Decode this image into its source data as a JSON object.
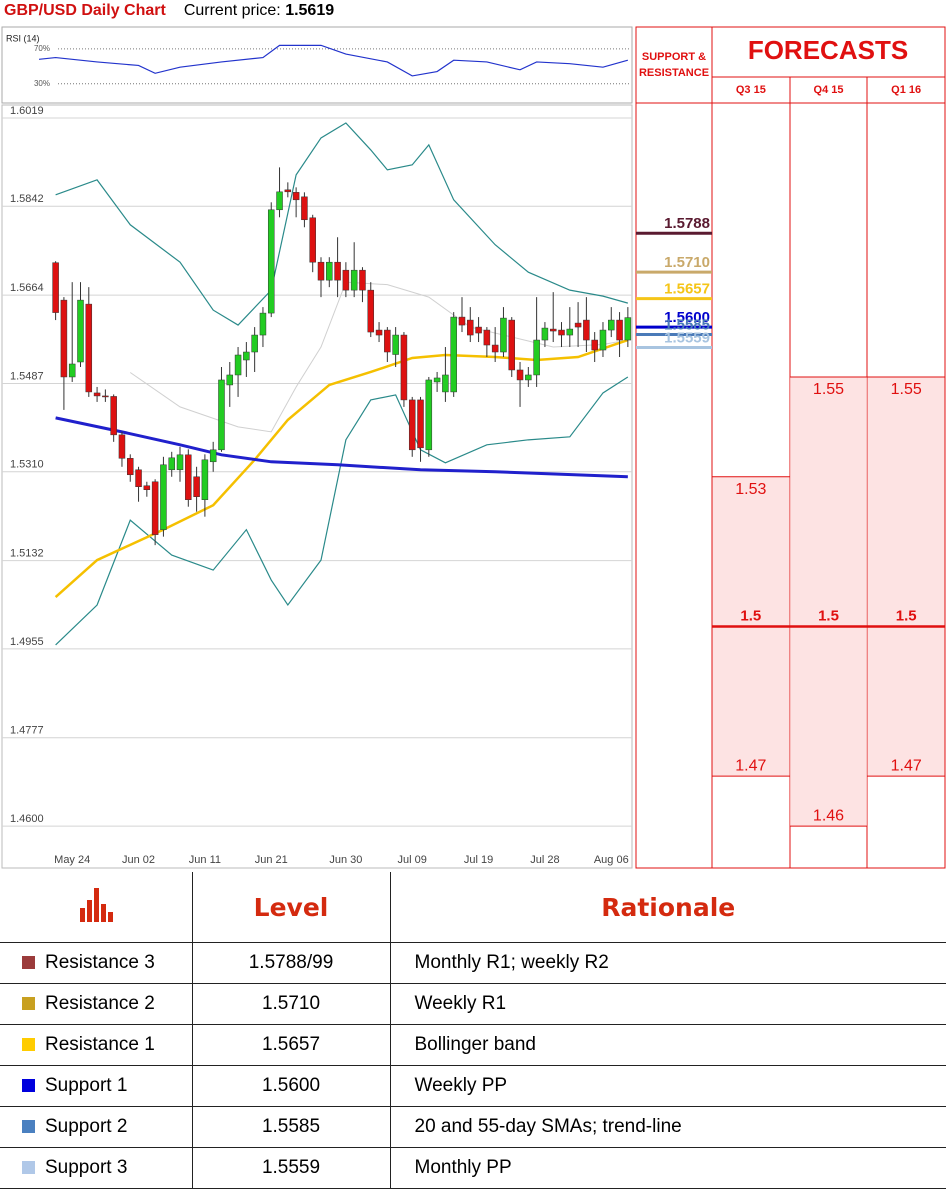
{
  "header": {
    "title": "GBP/USD Daily Chart",
    "price_label": "Current price:",
    "price": 1.5619
  },
  "chart_data": [
    {
      "type": "candlestick",
      "categories": [
        null,
        null,
        "May 24",
        null,
        null,
        null,
        null,
        null,
        null,
        null,
        "Jun 02",
        null,
        null,
        null,
        null,
        null,
        null,
        null,
        "Jun 11",
        null,
        null,
        null,
        null,
        null,
        null,
        null,
        "Jun 21",
        null,
        null,
        null,
        null,
        null,
        null,
        null,
        null,
        "Jun 30",
        null,
        null,
        null,
        null,
        null,
        null,
        null,
        "Jul 09",
        null,
        null,
        null,
        null,
        null,
        null,
        null,
        "Jul 19",
        null,
        null,
        null,
        null,
        null,
        null,
        null,
        "Jul 28",
        null,
        null,
        null,
        null,
        null,
        null,
        null,
        "Aug 06",
        null,
        null
      ],
      "open": [
        1.5729,
        1.5654,
        1.55,
        1.553,
        1.5646,
        1.5468,
        1.5462,
        1.5461,
        1.5384,
        1.5337,
        1.5314,
        1.5282,
        1.529,
        1.5194,
        1.5314,
        1.5314,
        1.5344,
        1.53,
        1.5254,
        1.533,
        1.5354,
        1.5484,
        1.5504,
        1.5534,
        1.555,
        1.5584,
        1.5628,
        1.5835,
        1.5875,
        1.587,
        1.5861,
        1.5819,
        1.573,
        1.5694,
        1.573,
        1.5714,
        1.5674,
        1.5714,
        1.5674,
        1.5594,
        1.5594,
        1.5545,
        1.5584,
        1.5454,
        1.5454,
        1.5354,
        1.549,
        1.547,
        1.547,
        1.562,
        1.5614,
        1.56,
        1.5594,
        1.5564,
        1.555,
        1.5614,
        1.5514,
        1.5494,
        1.5504,
        1.5574,
        1.5596,
        1.5594,
        1.5584,
        1.5608,
        1.5614,
        1.5574,
        1.5554,
        1.5594,
        1.5614,
        1.5574
      ],
      "high": [
        1.5732,
        1.566,
        1.569,
        1.569,
        1.568,
        1.548,
        1.5475,
        1.5465,
        1.539,
        1.5345,
        1.532,
        1.529,
        1.5295,
        1.534,
        1.535,
        1.536,
        1.5355,
        1.532,
        1.5345,
        1.537,
        1.552,
        1.553,
        1.556,
        1.557,
        1.56,
        1.564,
        1.585,
        1.592,
        1.589,
        1.588,
        1.587,
        1.5825,
        1.574,
        1.574,
        1.578,
        1.573,
        1.577,
        1.572,
        1.569,
        1.561,
        1.56,
        1.56,
        1.559,
        1.546,
        1.546,
        1.55,
        1.551,
        1.556,
        1.563,
        1.566,
        1.564,
        1.562,
        1.56,
        1.56,
        1.564,
        1.562,
        1.553,
        1.552,
        1.566,
        1.561,
        1.567,
        1.561,
        1.564,
        1.565,
        1.566,
        1.559,
        1.561,
        1.564,
        1.563,
        1.564
      ],
      "low": [
        1.5614,
        1.5434,
        1.549,
        1.552,
        1.546,
        1.545,
        1.545,
        1.537,
        1.532,
        1.529,
        1.525,
        1.526,
        1.5163,
        1.518,
        1.53,
        1.529,
        1.524,
        1.523,
        1.522,
        1.531,
        1.535,
        1.544,
        1.546,
        1.55,
        1.551,
        1.556,
        1.562,
        1.582,
        1.586,
        1.582,
        1.58,
        1.571,
        1.566,
        1.568,
        1.566,
        1.566,
        1.566,
        1.565,
        1.558,
        1.557,
        1.553,
        1.552,
        1.544,
        1.534,
        1.533,
        1.534,
        1.547,
        1.545,
        1.546,
        1.559,
        1.557,
        1.557,
        1.554,
        1.553,
        1.554,
        1.55,
        1.544,
        1.548,
        1.548,
        1.556,
        1.557,
        1.556,
        1.556,
        1.556,
        1.555,
        1.553,
        1.554,
        1.558,
        1.554,
        1.556
      ],
      "close": [
        1.5629,
        1.55,
        1.5526,
        1.5654,
        1.547,
        1.5462,
        1.546,
        1.5384,
        1.5337,
        1.5304,
        1.528,
        1.5274,
        1.5184,
        1.5324,
        1.5338,
        1.5344,
        1.5254,
        1.526,
        1.5334,
        1.5354,
        1.5494,
        1.5504,
        1.5544,
        1.555,
        1.5584,
        1.5628,
        1.5835,
        1.5871,
        1.5871,
        1.5855,
        1.5815,
        1.573,
        1.5694,
        1.573,
        1.5694,
        1.5674,
        1.5714,
        1.5674,
        1.559,
        1.5584,
        1.555,
        1.5584,
        1.5454,
        1.5354,
        1.5358,
        1.5494,
        1.5498,
        1.5504,
        1.562,
        1.5604,
        1.5584,
        1.5588,
        1.5564,
        1.555,
        1.5618,
        1.5514,
        1.5494,
        1.5504,
        1.5574,
        1.5598,
        1.5592,
        1.5584,
        1.5596,
        1.56,
        1.5574,
        1.5554,
        1.5594,
        1.5614,
        1.5574,
        1.5619
      ],
      "up_color": "#22cc22",
      "down_color": "#dd1111",
      "ylim": [
        1.4516,
        1.6045
      ],
      "yticks": [
        1.6019,
        1.5842,
        1.5664,
        1.5487,
        {
          "value": 1.531,
          "label": "1.5310"
        },
        1.5132,
        1.4955,
        1.4777,
        {
          "value": 1.46,
          "label": "1.4600"
        }
      ],
      "grid": true,
      "overlays": [
        {
          "color": "#2a8a8a",
          "x": [
            0,
            5,
            9,
            15,
            19,
            22,
            26,
            29,
            32,
            35,
            38,
            40,
            43,
            45,
            48,
            53,
            57,
            62,
            66,
            69
          ],
          "values": [
            1.5865,
            1.5895,
            1.5805,
            1.573,
            1.5634,
            1.5604,
            1.5674,
            1.5905,
            1.5979,
            1.6009,
            1.5955,
            1.5915,
            1.5925,
            1.5965,
            1.5855,
            1.5765,
            1.571,
            1.5674,
            1.5662,
            1.5648
          ]
        },
        {
          "color": "#2a8a8a",
          "x": [
            0,
            5,
            9,
            14,
            19,
            23,
            26,
            28,
            32,
            35,
            38,
            41,
            44,
            47,
            52,
            57,
            62,
            66,
            69
          ],
          "values": [
            1.4963,
            1.5043,
            1.5213,
            1.5143,
            1.5113,
            1.5194,
            1.5093,
            1.5043,
            1.5133,
            1.5374,
            1.5454,
            1.5464,
            1.5354,
            1.5328,
            1.5364,
            1.5374,
            1.538,
            1.5468,
            1.55
          ]
        },
        {
          "color": "#d0d0d0",
          "x": [
            9,
            15,
            22,
            26,
            29,
            32,
            35,
            40,
            45,
            50,
            55,
            60,
            66,
            69
          ],
          "values": [
            1.5509,
            1.544,
            1.54,
            1.539,
            1.548,
            1.556,
            1.569,
            1.5685,
            1.566,
            1.56,
            1.558,
            1.556,
            1.5565,
            1.5574
          ]
        },
        {
          "color": "#f5c000",
          "x": [
            0,
            5,
            13,
            19,
            24,
            28,
            33,
            38,
            43,
            47,
            53,
            58,
            63,
            69
          ],
          "values": [
            1.5059,
            1.5133,
            1.5194,
            1.5243,
            1.5334,
            1.5414,
            1.5484,
            1.551,
            1.5538,
            1.5544,
            1.554,
            1.5534,
            1.554,
            1.5574
          ]
        },
        {
          "color": "#2020cc",
          "x": [
            0,
            8,
            15,
            20,
            26,
            34,
            44,
            53,
            69
          ],
          "values": [
            1.5418,
            1.539,
            1.5364,
            1.5344,
            1.533,
            1.5324,
            1.5314,
            1.531,
            1.53
          ]
        }
      ],
      "levels_title": "SUPPORT & RESISTANCE",
      "levels": {
        "values": [
          1.5788,
          1.571,
          1.5657,
          1.56,
          1.5585,
          1.5559
        ],
        "value_labels": [
          "1.5788",
          "1.5710",
          "1.5657",
          "1.5600",
          "1.5585",
          "1.5559"
        ],
        "colors": [
          "#5a1a30",
          "#c9a96a",
          "#f5c518",
          "#0000cc",
          "#4a7ab8",
          "#a8c4e0"
        ]
      }
    },
    {
      "type": "line",
      "title": "RSI (14)",
      "color": "#2233cc",
      "x": [
        -2,
        0,
        5,
        10,
        12,
        15,
        20,
        25,
        27,
        32,
        35,
        40,
        43,
        46,
        48,
        52,
        56,
        58,
        62,
        66,
        69
      ],
      "values": [
        58,
        60,
        55,
        51,
        42,
        49,
        55,
        60,
        74,
        74,
        64,
        55,
        39,
        44,
        57,
        55,
        46,
        55,
        53,
        49,
        57
      ],
      "xlim": [
        -5.5,
        69.5
      ],
      "ylim": [
        8,
        95
      ],
      "yticks": [
        {
          "value": 70,
          "label": "70%"
        },
        {
          "value": 30,
          "label": "30%"
        }
      ],
      "grid": true
    },
    {
      "type": "range",
      "title": "FORECASTS",
      "categories": [
        "Q3 15",
        "Q4 15",
        "Q1 16"
      ],
      "high": [
        1.53,
        1.55,
        1.55
      ],
      "mid": [
        1.5,
        1.5,
        1.5
      ],
      "low": [
        1.47,
        1.46,
        1.47
      ],
      "ylim": [
        1.4516,
        1.6045
      ],
      "fill": "#fde3e3",
      "color": "#e01010"
    }
  ],
  "table": {
    "columns": [
      "Level",
      "Rationale"
    ],
    "rows": [
      {
        "color": "#9b3b3b",
        "name": "Resistance 3",
        "level": "1.5788/99",
        "rationale": "Monthly R1; weekly R2"
      },
      {
        "color": "#c8a020",
        "name": "Resistance 2",
        "level": "1.5710",
        "rationale": "Weekly R1"
      },
      {
        "color": "#ffcc00",
        "name": "Resistance 1",
        "level": "1.5657",
        "rationale": "Bollinger band"
      },
      {
        "color": "#0000dd",
        "name": "Support 1",
        "level": "1.5600",
        "rationale": "Weekly PP"
      },
      {
        "color": "#4a80c0",
        "name": "Support 2",
        "level": "1.5585",
        "rationale": "20 and 55-day SMAs; trend-line"
      },
      {
        "color": "#b0c8e8",
        "name": "Support 3",
        "level": "1.5559",
        "rationale": "Monthly PP"
      }
    ]
  }
}
